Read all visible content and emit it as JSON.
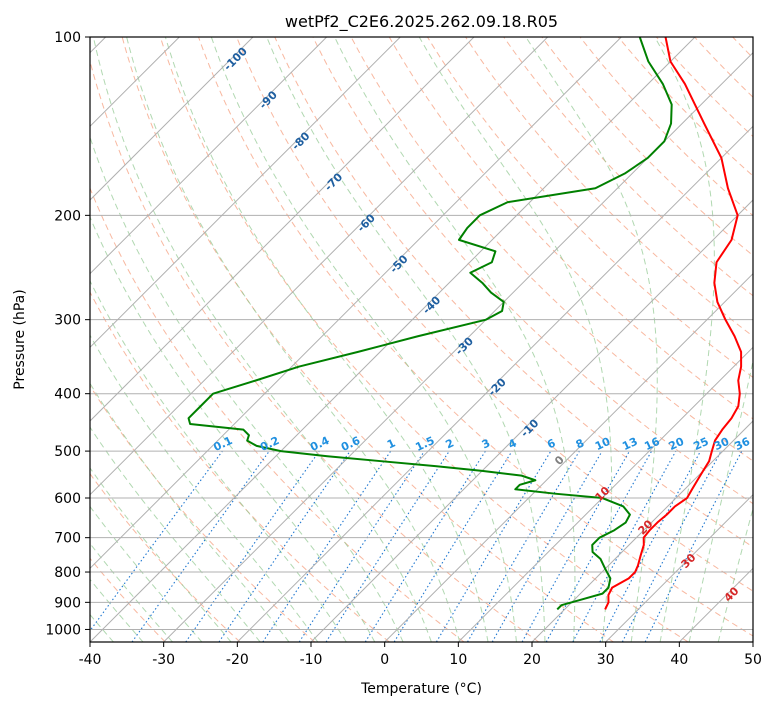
{
  "chart_data": {
    "type": "line",
    "title": "wetPf2_C2E6.2025.262.09.18.R05",
    "xlabel": "Temperature (°C)",
    "ylabel": "Pressure (hPa)",
    "xlim": [
      -40,
      50
    ],
    "ylim": [
      1050,
      100
    ],
    "yscale": "log",
    "skew": true,
    "grid": true,
    "x_ticks": [
      "-40",
      "-30",
      "-20",
      "-10",
      "0",
      "10",
      "20",
      "30",
      "40",
      "50"
    ],
    "y_ticks": [
      "100",
      "200",
      "300",
      "400",
      "500",
      "600",
      "700",
      "800",
      "900",
      "1000"
    ],
    "x_tick_values": [
      -40,
      -30,
      -20,
      -10,
      0,
      10,
      20,
      30,
      40,
      50
    ],
    "y_tick_values": [
      100,
      200,
      300,
      400,
      500,
      600,
      700,
      800,
      900,
      1000
    ],
    "series": [
      {
        "color": "#ff0000",
        "pressure": [
          925,
          900,
          875,
          850,
          820,
          800,
          780,
          750,
          720,
          700,
          680,
          660,
          640,
          620,
          600,
          580,
          560,
          540,
          520,
          500,
          480,
          460,
          440,
          420,
          400,
          380,
          360,
          340,
          320,
          300,
          280,
          260,
          240,
          220,
          200,
          180,
          160,
          140,
          120,
          110,
          100
        ],
        "values": [
          25.5,
          25.0,
          24.0,
          23.5,
          24.5,
          24.5,
          24.0,
          23.0,
          22.0,
          21.0,
          20.8,
          20.8,
          21.0,
          21.0,
          21.5,
          21.0,
          20.5,
          20.0,
          19.5,
          18.5,
          17.5,
          17.0,
          16.7,
          16.0,
          14.5,
          12.5,
          11.0,
          9.0,
          6.0,
          2.5,
          -1.0,
          -4.0,
          -6.5,
          -7.5,
          -10.0,
          -15.0,
          -20.0,
          -27.0,
          -35.0,
          -40.0,
          -44.0
        ]
      },
      {
        "color": "#008000",
        "pressure": [
          925,
          910,
          890,
          870,
          850,
          820,
          790,
          760,
          740,
          720,
          700,
          680,
          660,
          640,
          620,
          600,
          590,
          580,
          570,
          560,
          550,
          540,
          530,
          520,
          510,
          500,
          490,
          480,
          470,
          460,
          450,
          440,
          420,
          400,
          380,
          360,
          340,
          320,
          300,
          290,
          280,
          270,
          260,
          250,
          240,
          230,
          220,
          210,
          200,
          190,
          180,
          170,
          160,
          150,
          140,
          130,
          120,
          110,
          100
        ],
        "values": [
          19.0,
          19.0,
          21.0,
          23.0,
          23.0,
          22.0,
          20.0,
          18.0,
          16.0,
          15.0,
          15.0,
          16.0,
          16.5,
          16.0,
          14.0,
          10.0,
          3.0,
          -3.0,
          -3.0,
          -1.5,
          -4.0,
          -10.0,
          -17.0,
          -25.0,
          -33.0,
          -40.0,
          -44.0,
          -46.0,
          -46.5,
          -48.0,
          -56.0,
          -57.0,
          -57.0,
          -57.0,
          -53.0,
          -49.0,
          -43.0,
          -37.0,
          -30.0,
          -29.0,
          -30.0,
          -33.0,
          -35.5,
          -38.5,
          -37.0,
          -38.0,
          -44.5,
          -45.0,
          -45.0,
          -43.0,
          -33.0,
          -31.0,
          -30.0,
          -30.0,
          -31.5,
          -34.0,
          -38.0,
          -43.0,
          -47.5
        ]
      }
    ],
    "dry_adiabat_labels": [
      "-100",
      "-90",
      "-80",
      "-70",
      "-60",
      "-50",
      "-40",
      "-30",
      "-20",
      "-10"
    ],
    "dry_adiabat_values": [
      -100,
      -90,
      -80,
      -70,
      -60,
      -50,
      -40,
      -30,
      -20,
      -10
    ],
    "mixing_ratio_labels": [
      "0.1",
      "0.2",
      "0.4",
      "0.6",
      "1",
      "1.5",
      "2",
      "3",
      "4",
      "6",
      "8",
      "10",
      "13",
      "16",
      "20",
      "25",
      "30",
      "36"
    ],
    "mixing_ratio_values": [
      0.1,
      0.2,
      0.4,
      0.6,
      1,
      1.5,
      2,
      3,
      4,
      6,
      8,
      10,
      13,
      16,
      20,
      25,
      30,
      36
    ],
    "moist_adiabat_labels": [
      "0",
      "10",
      "20",
      "30",
      "40"
    ],
    "moist_adiabat_values": [
      0,
      10,
      20,
      30,
      40
    ],
    "colors": {
      "isotherm": "#b0b0b0",
      "isobar": "#b0b0b0",
      "dry_adiabat": "#f5a080",
      "moist_adiabat": "#90c890",
      "mixing_ratio": "#1f77d0",
      "dry_adiabat_label": "#1f5fa0",
      "mixing_ratio_label": "#2090e0",
      "moist_adiabat_label": "#d62728",
      "moist_adiabat_label_zero": "#808080"
    }
  }
}
